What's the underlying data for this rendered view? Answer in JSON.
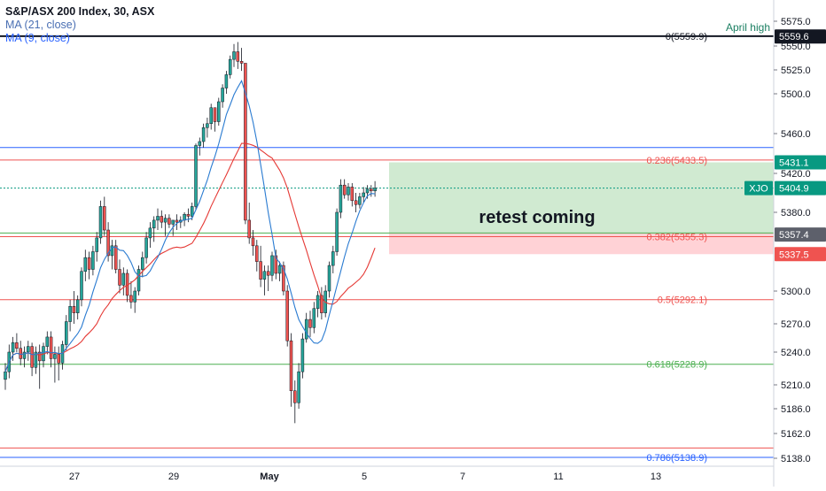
{
  "legend": {
    "title": "S&P/ASX 200 Index, 30, ASX",
    "ma21": "MA (21, close)",
    "ma9": "MA (9, close)"
  },
  "colors": {
    "up": "#26a69a",
    "down": "#ef5350",
    "ma9": "#2a7bd1",
    "ma21": "#e53935",
    "fib_red": "#ef5350",
    "fib_green": "#4caf50",
    "fib_blue": "#2962ff",
    "zone_green": "#c8e6c9",
    "zone_red": "#ffcdd2",
    "xjo": "#089981",
    "axis_text": "#131722"
  },
  "annotations": {
    "april_high_label": "April high",
    "zone_text": "retest coming"
  },
  "chart_data": {
    "type": "candlestick",
    "symbol": "XJO",
    "y_axis_ticks": [
      5575.0,
      5550.0,
      5525.0,
      5500.0,
      5460.0,
      5420.0,
      5380.0,
      5300.0,
      5270.0,
      5240.0,
      5210.0,
      5186.0,
      5162.0,
      5138.0
    ],
    "x_axis_ticks": [
      "27",
      "29",
      "May",
      "5",
      "7",
      "11",
      "13"
    ],
    "price_labels": [
      {
        "value": 5559.6,
        "text": "5559.6",
        "style": "black"
      },
      {
        "value": 5431.1,
        "text": "5431.1",
        "style": "green"
      },
      {
        "value": 5404.9,
        "text": "5404.9",
        "style": "teal",
        "tag": "XJO"
      },
      {
        "value": 5357.4,
        "text": "5357.4",
        "style": "gray"
      },
      {
        "value": 5337.5,
        "text": "5337.5",
        "style": "red"
      }
    ],
    "fib_levels": [
      {
        "label": "0(5559.9)",
        "value": 5559.9,
        "color": "black"
      },
      {
        "label": "0.236(5433.5)",
        "value": 5433.5,
        "color": "red"
      },
      {
        "label": "0.382(5355.3)",
        "value": 5355.3,
        "color": "red"
      },
      {
        "label": "0.5(5292.1)",
        "value": 5292.1,
        "color": "red"
      },
      {
        "label": "0.618(5228.9)",
        "value": 5228.9,
        "color": "green"
      },
      {
        "label": "0.786(5138.9)",
        "value": 5138.9,
        "color": "blue"
      }
    ],
    "horizontal_lines": [
      {
        "value": 5446.0,
        "color": "blue"
      },
      {
        "value": 5359.0,
        "color": "green"
      },
      {
        "value": 5148.0,
        "color": "red"
      }
    ],
    "zones": [
      {
        "name": "green",
        "from": 5359.0,
        "to": 5431.1
      },
      {
        "name": "red",
        "from": 5337.5,
        "to": 5359.0
      }
    ],
    "candles": [
      [
        5215,
        5230,
        5205,
        5222
      ],
      [
        5222,
        5248,
        5216,
        5240
      ],
      [
        5240,
        5256,
        5232,
        5250
      ],
      [
        5250,
        5260,
        5240,
        5244
      ],
      [
        5244,
        5252,
        5228,
        5234
      ],
      [
        5234,
        5246,
        5226,
        5240
      ],
      [
        5240,
        5252,
        5232,
        5246
      ],
      [
        5246,
        5250,
        5218,
        5226
      ],
      [
        5226,
        5246,
        5220,
        5240
      ],
      [
        5240,
        5248,
        5206,
        5232
      ],
      [
        5232,
        5250,
        5226,
        5246
      ],
      [
        5246,
        5262,
        5238,
        5256
      ],
      [
        5256,
        5262,
        5226,
        5234
      ],
      [
        5234,
        5246,
        5212,
        5238
      ],
      [
        5238,
        5246,
        5214,
        5230
      ],
      [
        5230,
        5252,
        5224,
        5248
      ],
      [
        5248,
        5278,
        5242,
        5272
      ],
      [
        5272,
        5292,
        5262,
        5286
      ],
      [
        5286,
        5300,
        5270,
        5280
      ],
      [
        5280,
        5296,
        5274,
        5292
      ],
      [
        5292,
        5324,
        5286,
        5320
      ],
      [
        5320,
        5342,
        5310,
        5334
      ],
      [
        5334,
        5340,
        5312,
        5322
      ],
      [
        5322,
        5346,
        5316,
        5340
      ],
      [
        5340,
        5360,
        5330,
        5354
      ],
      [
        5354,
        5392,
        5348,
        5386
      ],
      [
        5386,
        5396,
        5356,
        5362
      ],
      [
        5362,
        5370,
        5330,
        5336
      ],
      [
        5336,
        5352,
        5322,
        5346
      ],
      [
        5346,
        5352,
        5318,
        5322
      ],
      [
        5322,
        5332,
        5298,
        5306
      ],
      [
        5306,
        5324,
        5296,
        5318
      ],
      [
        5318,
        5322,
        5290,
        5296
      ],
      [
        5296,
        5310,
        5284,
        5290
      ],
      [
        5290,
        5304,
        5280,
        5300
      ],
      [
        5300,
        5326,
        5296,
        5322
      ],
      [
        5322,
        5340,
        5314,
        5334
      ],
      [
        5334,
        5360,
        5328,
        5354
      ],
      [
        5354,
        5370,
        5344,
        5364
      ],
      [
        5364,
        5376,
        5350,
        5372
      ],
      [
        5372,
        5384,
        5362,
        5376
      ],
      [
        5376,
        5382,
        5364,
        5370
      ],
      [
        5370,
        5378,
        5356,
        5374
      ],
      [
        5374,
        5378,
        5364,
        5368
      ],
      [
        5368,
        5372,
        5356,
        5372
      ],
      [
        5372,
        5378,
        5362,
        5370
      ],
      [
        5370,
        5376,
        5364,
        5372
      ],
      [
        5372,
        5380,
        5366,
        5378
      ],
      [
        5378,
        5384,
        5370,
        5376
      ],
      [
        5376,
        5390,
        5372,
        5386
      ],
      [
        5386,
        5450,
        5382,
        5448
      ],
      [
        5448,
        5456,
        5438,
        5452
      ],
      [
        5452,
        5470,
        5446,
        5466
      ],
      [
        5466,
        5476,
        5456,
        5470
      ],
      [
        5470,
        5490,
        5464,
        5486
      ],
      [
        5486,
        5486,
        5462,
        5472
      ],
      [
        5472,
        5496,
        5468,
        5492
      ],
      [
        5492,
        5510,
        5486,
        5506
      ],
      [
        5506,
        5524,
        5500,
        5520
      ],
      [
        5520,
        5540,
        5516,
        5536
      ],
      [
        5536,
        5552,
        5528,
        5544
      ],
      [
        5544,
        5554,
        5526,
        5534
      ],
      [
        5534,
        5548,
        5524,
        5532
      ],
      [
        5532,
        5532,
        5368,
        5372
      ],
      [
        5372,
        5390,
        5348,
        5354
      ],
      [
        5354,
        5362,
        5336,
        5346
      ],
      [
        5346,
        5352,
        5320,
        5330
      ],
      [
        5330,
        5346,
        5304,
        5312
      ],
      [
        5312,
        5326,
        5296,
        5320
      ],
      [
        5320,
        5326,
        5300,
        5316
      ],
      [
        5316,
        5340,
        5310,
        5336
      ],
      [
        5336,
        5342,
        5312,
        5318
      ],
      [
        5318,
        5330,
        5310,
        5326
      ],
      [
        5326,
        5330,
        5296,
        5300
      ],
      [
        5300,
        5306,
        5246,
        5252
      ],
      [
        5252,
        5260,
        5188,
        5204
      ],
      [
        5204,
        5214,
        5172,
        5192
      ],
      [
        5192,
        5230,
        5186,
        5222
      ],
      [
        5222,
        5260,
        5216,
        5254
      ],
      [
        5254,
        5280,
        5250,
        5274
      ],
      [
        5274,
        5282,
        5256,
        5266
      ],
      [
        5266,
        5290,
        5260,
        5284
      ],
      [
        5284,
        5300,
        5276,
        5296
      ],
      [
        5296,
        5304,
        5274,
        5280
      ],
      [
        5280,
        5306,
        5276,
        5300
      ],
      [
        5300,
        5330,
        5294,
        5326
      ],
      [
        5326,
        5346,
        5318,
        5340
      ],
      [
        5340,
        5384,
        5336,
        5380
      ],
      [
        5380,
        5414,
        5374,
        5408
      ],
      [
        5408,
        5414,
        5394,
        5398
      ],
      [
        5398,
        5410,
        5392,
        5406
      ],
      [
        5406,
        5410,
        5386,
        5392
      ],
      [
        5392,
        5400,
        5380,
        5388
      ],
      [
        5388,
        5400,
        5384,
        5396
      ],
      [
        5396,
        5406,
        5390,
        5400
      ],
      [
        5400,
        5408,
        5394,
        5404
      ],
      [
        5404,
        5408,
        5396,
        5402
      ],
      [
        5402,
        5412,
        5396,
        5404.9
      ]
    ],
    "last_price": 5404.9
  }
}
